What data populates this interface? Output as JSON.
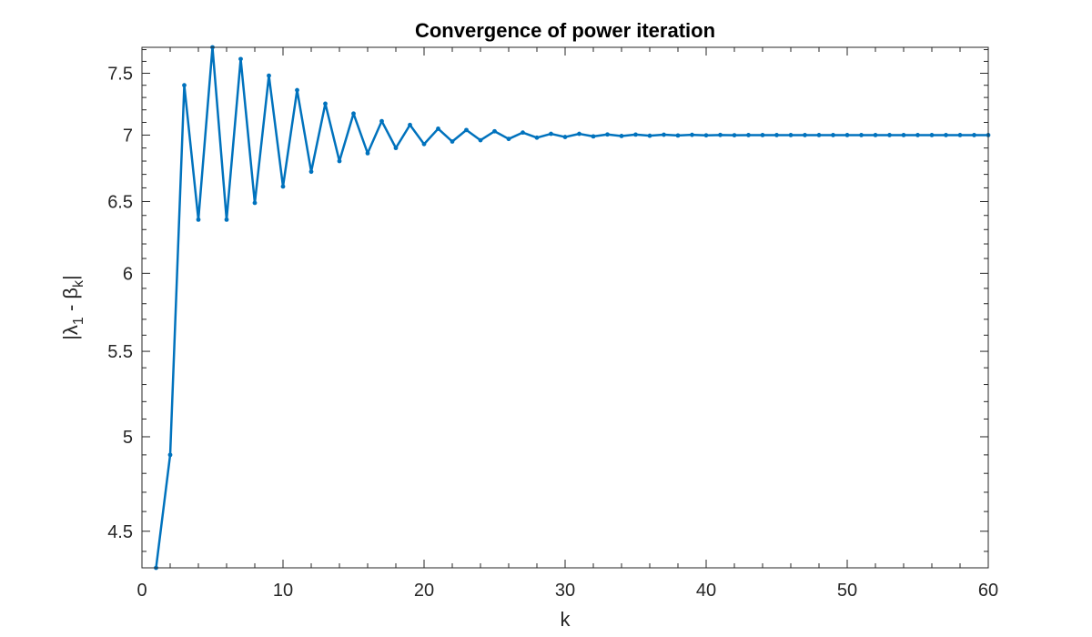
{
  "chart_data": {
    "type": "line",
    "title": "Convergence of power iteration",
    "xlabel": "k",
    "ylabel": "|λ1 - βk|",
    "ylabel_parts": {
      "open": "|λ",
      "sub1": "1",
      "mid": " - β",
      "sub2": "k",
      "close": "|"
    },
    "xlim": [
      0,
      60
    ],
    "ylim": [
      4.32,
      7.72
    ],
    "yscale": "log",
    "grid": false,
    "xticks": [
      0,
      10,
      20,
      30,
      40,
      50,
      60
    ],
    "xtick_labels": [
      "0",
      "10",
      "20",
      "30",
      "40",
      "50",
      "60"
    ],
    "yticks": [
      4.5,
      5,
      5.5,
      6,
      6.5,
      7,
      7.5
    ],
    "ytick_labels": [
      "4.5",
      "5",
      "5.5",
      "6",
      "6.5",
      "7",
      "7.5"
    ],
    "series": [
      {
        "color": "#0072BD",
        "x": [
          1,
          2,
          3,
          4,
          5,
          6,
          7,
          8,
          9,
          10,
          11,
          12,
          13,
          14,
          15,
          16,
          17,
          18,
          19,
          20,
          21,
          22,
          23,
          24,
          25,
          26,
          27,
          28,
          29,
          30,
          31,
          32,
          33,
          34,
          35,
          36,
          37,
          38,
          39,
          40,
          41,
          42,
          43,
          44,
          45,
          46,
          47,
          48,
          49,
          50,
          51,
          52,
          53,
          54,
          55,
          56,
          57,
          58,
          59,
          60
        ],
        "y": [
          4.32,
          4.9,
          7.4,
          6.37,
          7.72,
          6.37,
          7.62,
          6.49,
          7.48,
          6.61,
          7.36,
          6.72,
          7.25,
          6.8,
          7.17,
          6.86,
          7.11,
          6.9,
          7.08,
          6.93,
          7.05,
          6.95,
          7.04,
          6.96,
          7.03,
          6.97,
          7.02,
          6.98,
          7.01,
          6.985,
          7.01,
          6.99,
          7.005,
          6.993,
          7.004,
          6.995,
          7.003,
          6.997,
          7.002,
          6.998,
          7.001,
          6.999,
          7.0,
          7.0,
          7.0,
          7.0,
          7.0,
          7.0,
          7.0,
          7.0,
          7.0,
          7.0,
          7.0,
          7.0,
          7.0,
          7.0,
          7.0,
          7.0,
          7.0,
          7.0
        ]
      }
    ]
  }
}
